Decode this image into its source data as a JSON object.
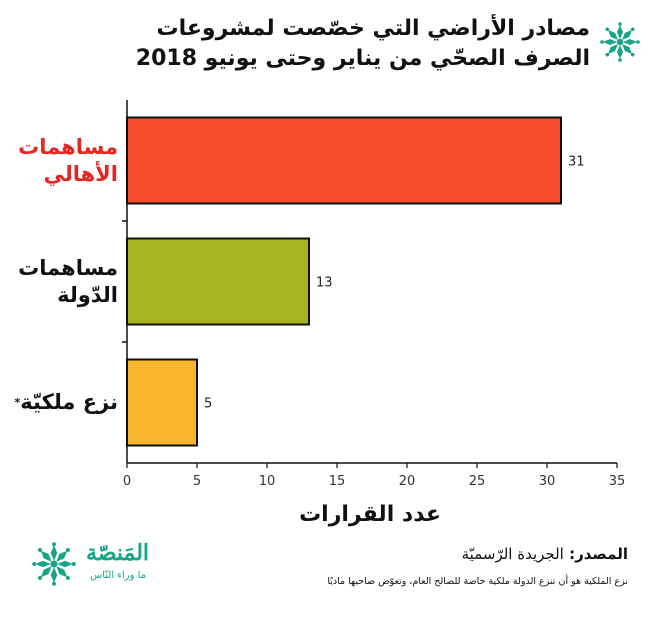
{
  "title": {
    "line1": "مصادر الأراضي التي خصّصت لمشروعات",
    "line2": "الصرف الصحّي من يناير وحتى يونيو 2018"
  },
  "source": {
    "label": "المصدر:",
    "value": "الجريدة الرّسميّة",
    "footnote": "نزع الملكية هو أن تنزع الدولة ملكية خاصة للصالح العام، وتعوّض صاحبها ماديًا"
  },
  "logo": {
    "name": "المَنصّة",
    "tagline": "ما وراء النّاس",
    "icon": "snowflake-star-icon",
    "color": "#17a589"
  },
  "chart_data": {
    "type": "bar",
    "orientation": "horizontal",
    "categories": [
      {
        "line1": "مساهمات",
        "line2": "الأهالي",
        "label_color": "#e8251f"
      },
      {
        "line1": "مساهمات",
        "line2": "الدّولة",
        "label_color": "#111111"
      },
      {
        "line1": "نزع ملكيّة",
        "line2": "",
        "label_color": "#111111",
        "marker": "*"
      }
    ],
    "values": [
      31,
      13,
      5
    ],
    "value_labels": [
      "31",
      "13",
      "5"
    ],
    "colors": [
      "#f44c2a",
      "#a9b421",
      "#f6b52b"
    ],
    "xlabel": "عدد القرارات",
    "xlim": [
      0,
      35
    ],
    "xticks": [
      "0",
      "5",
      "10",
      "15",
      "20",
      "25",
      "30",
      "35"
    ],
    "grid": false
  }
}
